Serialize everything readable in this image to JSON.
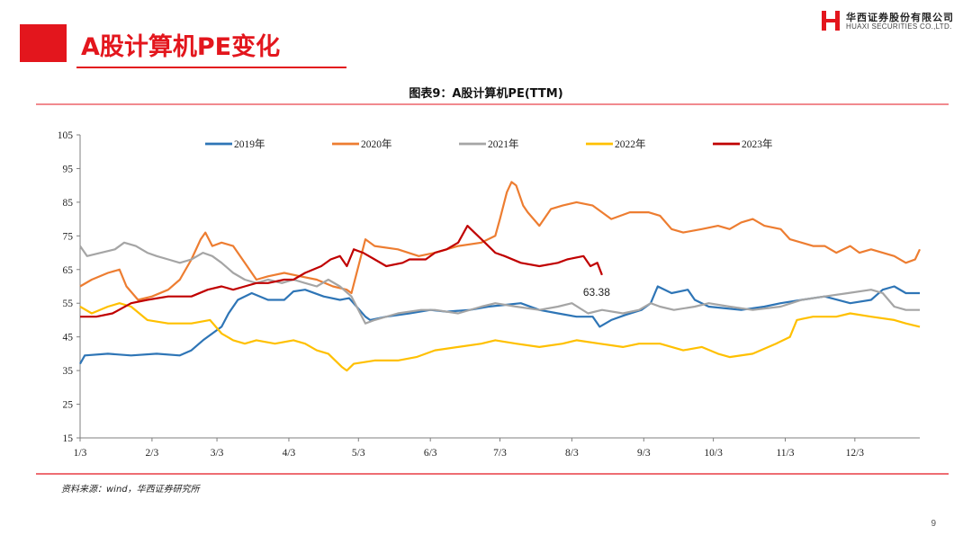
{
  "slide": {
    "title": "A股计算机PE变化",
    "page_number": "9",
    "source": "资料来源：wind，华西证券研究所"
  },
  "logo": {
    "name_cn": "华西证券股份有限公司",
    "name_en": "HUAXI SECURITIES CO.,LTD."
  },
  "colors": {
    "accent": "#e3161d",
    "s2019": "#2e75b6",
    "s2020": "#ed7d31",
    "s2021": "#a5a5a5",
    "s2022": "#ffc000",
    "s2023": "#c00000"
  },
  "chart_data": {
    "type": "line",
    "title": "图表9：A股计算机PE(TTM)",
    "xlabel": "",
    "ylabel": "",
    "x_ticks": [
      "1/3",
      "2/3",
      "3/3",
      "4/3",
      "5/3",
      "6/3",
      "7/3",
      "8/3",
      "9/3",
      "10/3",
      "11/3",
      "12/3"
    ],
    "y_ticks": [
      15,
      25,
      35,
      45,
      55,
      65,
      75,
      85,
      95,
      105
    ],
    "ylim": [
      15,
      105
    ],
    "x_domain": [
      "1/3",
      "12/31"
    ],
    "legend_position": "top",
    "grid": false,
    "annotation": {
      "text": "63.38",
      "series": "2023年",
      "x": "8/16",
      "y": 63.38
    },
    "series": [
      {
        "name": "2019年",
        "color": "#2e75b6",
        "points": [
          [
            "1/3",
            37
          ],
          [
            "1/5",
            39.5
          ],
          [
            "1/15",
            40
          ],
          [
            "1/25",
            39.5
          ],
          [
            "2/5",
            40
          ],
          [
            "2/15",
            39.5
          ],
          [
            "2/20",
            41
          ],
          [
            "2/25",
            44
          ],
          [
            "3/1",
            46
          ],
          [
            "3/5",
            48
          ],
          [
            "3/8",
            52
          ],
          [
            "3/12",
            56
          ],
          [
            "3/18",
            58
          ],
          [
            "3/25",
            56
          ],
          [
            "4/1",
            56
          ],
          [
            "4/5",
            58.5
          ],
          [
            "4/10",
            59
          ],
          [
            "4/18",
            57
          ],
          [
            "4/25",
            56
          ],
          [
            "4/29",
            56.5
          ],
          [
            "5/6",
            51
          ],
          [
            "5/8",
            50
          ],
          [
            "5/15",
            51
          ],
          [
            "5/25",
            52
          ],
          [
            "6/3",
            53
          ],
          [
            "6/10",
            52.5
          ],
          [
            "6/20",
            53
          ],
          [
            "6/28",
            54
          ],
          [
            "7/5",
            54.5
          ],
          [
            "7/12",
            55
          ],
          [
            "7/20",
            53
          ],
          [
            "7/28",
            52
          ],
          [
            "8/5",
            51
          ],
          [
            "8/12",
            51
          ],
          [
            "8/15",
            48
          ],
          [
            "8/20",
            50
          ],
          [
            "8/26",
            51.5
          ],
          [
            "9/2",
            53
          ],
          [
            "9/6",
            55
          ],
          [
            "9/9",
            60
          ],
          [
            "9/15",
            58
          ],
          [
            "9/22",
            59
          ],
          [
            "9/25",
            56
          ],
          [
            "10/1",
            54
          ],
          [
            "10/15",
            53
          ],
          [
            "10/25",
            54
          ],
          [
            "11/1",
            55
          ],
          [
            "11/10",
            56
          ],
          [
            "11/20",
            57
          ],
          [
            "12/1",
            55
          ],
          [
            "12/10",
            56
          ],
          [
            "12/15",
            59
          ],
          [
            "12/20",
            60
          ],
          [
            "12/25",
            58
          ],
          [
            "12/31",
            58
          ]
        ]
      },
      {
        "name": "2020年",
        "color": "#ed7d31",
        "points": [
          [
            "1/3",
            60
          ],
          [
            "1/8",
            62
          ],
          [
            "1/15",
            64
          ],
          [
            "1/20",
            65
          ],
          [
            "1/23",
            60
          ],
          [
            "1/28",
            56
          ],
          [
            "2/3",
            57
          ],
          [
            "2/10",
            59
          ],
          [
            "2/15",
            62
          ],
          [
            "2/20",
            68
          ],
          [
            "2/24",
            74
          ],
          [
            "2/26",
            76
          ],
          [
            "3/1",
            72
          ],
          [
            "3/5",
            73
          ],
          [
            "3/10",
            72
          ],
          [
            "3/15",
            67
          ],
          [
            "3/20",
            62
          ],
          [
            "3/25",
            63
          ],
          [
            "4/1",
            64
          ],
          [
            "4/8",
            63
          ],
          [
            "4/15",
            62
          ],
          [
            "4/22",
            60
          ],
          [
            "4/28",
            59
          ],
          [
            "4/30",
            58
          ],
          [
            "5/6",
            74
          ],
          [
            "5/10",
            72
          ],
          [
            "5/20",
            71
          ],
          [
            "5/29",
            69
          ],
          [
            "6/5",
            70
          ],
          [
            "6/15",
            72
          ],
          [
            "6/25",
            73
          ],
          [
            "7/1",
            75
          ],
          [
            "7/3",
            80
          ],
          [
            "7/6",
            88
          ],
          [
            "7/8",
            91
          ],
          [
            "7/10",
            90
          ],
          [
            "7/13",
            84
          ],
          [
            "7/15",
            82
          ],
          [
            "7/20",
            78
          ],
          [
            "7/25",
            83
          ],
          [
            "7/30",
            84
          ],
          [
            "8/5",
            85
          ],
          [
            "8/12",
            84
          ],
          [
            "8/20",
            80
          ],
          [
            "8/28",
            82
          ],
          [
            "9/5",
            82
          ],
          [
            "9/10",
            81
          ],
          [
            "9/15",
            77
          ],
          [
            "9/20",
            76
          ],
          [
            "9/28",
            77
          ],
          [
            "10/5",
            78
          ],
          [
            "10/10",
            77
          ],
          [
            "10/15",
            79
          ],
          [
            "10/20",
            80
          ],
          [
            "10/25",
            78
          ],
          [
            "11/1",
            77
          ],
          [
            "11/5",
            74
          ],
          [
            "11/10",
            73
          ],
          [
            "11/15",
            72
          ],
          [
            "11/20",
            72
          ],
          [
            "11/25",
            70
          ],
          [
            "12/1",
            72
          ],
          [
            "12/5",
            70
          ],
          [
            "12/10",
            71
          ],
          [
            "12/15",
            70
          ],
          [
            "12/20",
            69
          ],
          [
            "12/25",
            67
          ],
          [
            "12/29",
            68
          ],
          [
            "12/31",
            71
          ]
        ]
      },
      {
        "name": "2021年",
        "color": "#a5a5a5",
        "points": [
          [
            "1/3",
            72
          ],
          [
            "1/6",
            69
          ],
          [
            "1/12",
            70
          ],
          [
            "1/18",
            71
          ],
          [
            "1/22",
            73
          ],
          [
            "1/27",
            72
          ],
          [
            "2/1",
            70
          ],
          [
            "2/5",
            69
          ],
          [
            "2/10",
            68
          ],
          [
            "2/15",
            67
          ],
          [
            "2/20",
            68
          ],
          [
            "2/25",
            70
          ],
          [
            "3/1",
            69
          ],
          [
            "3/5",
            67
          ],
          [
            "3/10",
            64
          ],
          [
            "3/15",
            62
          ],
          [
            "3/20",
            61
          ],
          [
            "3/25",
            62
          ],
          [
            "3/31",
            61
          ],
          [
            "4/5",
            62
          ],
          [
            "4/10",
            61
          ],
          [
            "4/15",
            60
          ],
          [
            "4/20",
            62
          ],
          [
            "4/25",
            60
          ],
          [
            "4/30",
            57
          ],
          [
            "5/6",
            49
          ],
          [
            "5/10",
            50
          ],
          [
            "5/20",
            52
          ],
          [
            "5/30",
            53
          ],
          [
            "6/5",
            53
          ],
          [
            "6/15",
            52
          ],
          [
            "6/25",
            54
          ],
          [
            "7/1",
            55
          ],
          [
            "7/10",
            54
          ],
          [
            "7/20",
            53
          ],
          [
            "7/28",
            54
          ],
          [
            "8/3",
            55
          ],
          [
            "8/10",
            52
          ],
          [
            "8/16",
            53
          ],
          [
            "8/25",
            52
          ],
          [
            "9/1",
            53
          ],
          [
            "9/6",
            55
          ],
          [
            "9/10",
            54
          ],
          [
            "9/16",
            53
          ],
          [
            "9/25",
            54
          ],
          [
            "10/1",
            55
          ],
          [
            "10/10",
            54
          ],
          [
            "10/20",
            53
          ],
          [
            "11/1",
            54
          ],
          [
            "11/10",
            56
          ],
          [
            "11/20",
            57
          ],
          [
            "11/30",
            58
          ],
          [
            "12/10",
            59
          ],
          [
            "12/15",
            58
          ],
          [
            "12/20",
            54
          ],
          [
            "12/25",
            53
          ],
          [
            "12/31",
            53
          ]
        ]
      },
      {
        "name": "2022年",
        "color": "#ffc000",
        "points": [
          [
            "1/3",
            54
          ],
          [
            "1/8",
            52
          ],
          [
            "1/15",
            54
          ],
          [
            "1/20",
            55
          ],
          [
            "1/25",
            54
          ],
          [
            "2/1",
            50
          ],
          [
            "2/10",
            49
          ],
          [
            "2/20",
            49
          ],
          [
            "2/28",
            50
          ],
          [
            "3/5",
            46
          ],
          [
            "3/10",
            44
          ],
          [
            "3/15",
            43
          ],
          [
            "3/20",
            44
          ],
          [
            "3/28",
            43
          ],
          [
            "4/5",
            44
          ],
          [
            "4/10",
            43
          ],
          [
            "4/15",
            41
          ],
          [
            "4/20",
            40
          ],
          [
            "4/26",
            36
          ],
          [
            "4/28",
            35
          ],
          [
            "5/1",
            37
          ],
          [
            "5/10",
            38
          ],
          [
            "5/20",
            38
          ],
          [
            "5/28",
            39
          ],
          [
            "6/5",
            41
          ],
          [
            "6/15",
            42
          ],
          [
            "6/25",
            43
          ],
          [
            "7/1",
            44
          ],
          [
            "7/10",
            43
          ],
          [
            "7/20",
            42
          ],
          [
            "7/30",
            43
          ],
          [
            "8/5",
            44
          ],
          [
            "8/15",
            43
          ],
          [
            "8/25",
            42
          ],
          [
            "9/1",
            43
          ],
          [
            "9/10",
            43
          ],
          [
            "9/20",
            41
          ],
          [
            "9/28",
            42
          ],
          [
            "10/5",
            40
          ],
          [
            "10/10",
            39
          ],
          [
            "10/20",
            40
          ],
          [
            "10/30",
            43
          ],
          [
            "11/5",
            45
          ],
          [
            "11/8",
            50
          ],
          [
            "11/15",
            51
          ],
          [
            "11/25",
            51
          ],
          [
            "12/1",
            52
          ],
          [
            "12/10",
            51
          ],
          [
            "12/20",
            50
          ],
          [
            "12/25",
            49
          ],
          [
            "12/31",
            48
          ]
        ]
      },
      {
        "name": "2023年",
        "color": "#c00000",
        "points": [
          [
            "1/3",
            51
          ],
          [
            "1/10",
            51
          ],
          [
            "1/17",
            52
          ],
          [
            "1/25",
            55
          ],
          [
            "2/1",
            56
          ],
          [
            "2/10",
            57
          ],
          [
            "2/20",
            57
          ],
          [
            "2/27",
            59
          ],
          [
            "3/5",
            60
          ],
          [
            "3/10",
            59
          ],
          [
            "3/15",
            60
          ],
          [
            "3/20",
            61
          ],
          [
            "3/25",
            61
          ],
          [
            "4/1",
            62
          ],
          [
            "4/5",
            62
          ],
          [
            "4/10",
            64
          ],
          [
            "4/17",
            66
          ],
          [
            "4/21",
            68
          ],
          [
            "4/25",
            69
          ],
          [
            "4/28",
            66
          ],
          [
            "5/1",
            71
          ],
          [
            "5/5",
            70
          ],
          [
            "5/10",
            68
          ],
          [
            "5/15",
            66
          ],
          [
            "5/22",
            67
          ],
          [
            "5/25",
            68
          ],
          [
            "6/1",
            68
          ],
          [
            "6/5",
            70
          ],
          [
            "6/10",
            71
          ],
          [
            "6/15",
            73
          ],
          [
            "6/19",
            78
          ],
          [
            "6/22",
            76
          ],
          [
            "6/25",
            74
          ],
          [
            "7/1",
            70
          ],
          [
            "7/5",
            69
          ],
          [
            "7/12",
            67
          ],
          [
            "7/20",
            66
          ],
          [
            "7/28",
            67
          ],
          [
            "8/1",
            68
          ],
          [
            "8/8",
            69
          ],
          [
            "8/11",
            66
          ],
          [
            "8/14",
            67
          ],
          [
            "8/16",
            63.38
          ]
        ]
      }
    ]
  }
}
